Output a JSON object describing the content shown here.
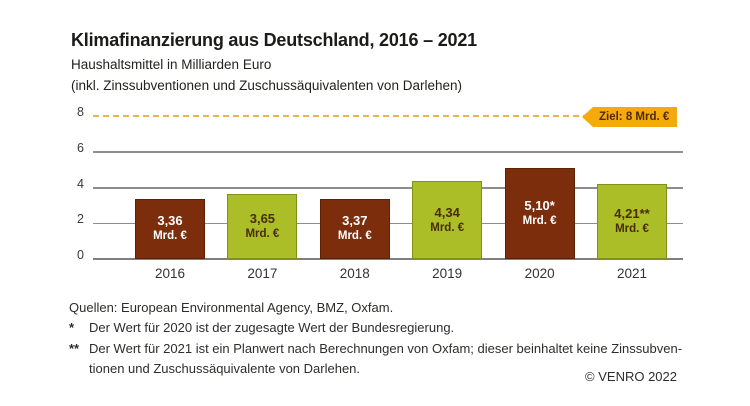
{
  "header": {
    "title": "Klimafinanzierung aus Deutschland, 2016 – 2021",
    "subtitle1": "Haushaltsmittel in Milliarden Euro",
    "subtitle2": "(inkl. Zinssubventionen und Zuschussäquivalenten von Darlehen)"
  },
  "chart_data": {
    "type": "bar",
    "title": "Klimafinanzierung aus Deutschland, 2016 – 2021",
    "ylabel": "Haushaltsmittel in Milliarden Euro",
    "xlabel": "",
    "categories": [
      "2016",
      "2017",
      "2018",
      "2019",
      "2020",
      "2021"
    ],
    "values": [
      3.36,
      3.65,
      3.37,
      4.34,
      5.1,
      4.21
    ],
    "ylim": [
      0,
      8
    ],
    "yticks": [
      0,
      2,
      4,
      6,
      8
    ],
    "grid": true,
    "bar_unit": "Mrd. €",
    "bars": [
      {
        "category": "2016",
        "value": 3.36,
        "label": "3,36",
        "unit": "Mrd. €",
        "fill": "#7b2d0c",
        "stroke": "#5e2108",
        "text_color": "#ffffff"
      },
      {
        "category": "2017",
        "value": 3.65,
        "label": "3,65",
        "unit": "Mrd. €",
        "fill": "#abbe28",
        "stroke": "#80911a",
        "text_color": "#4a2a08"
      },
      {
        "category": "2018",
        "value": 3.37,
        "label": "3,37",
        "unit": "Mrd. €",
        "fill": "#7b2d0c",
        "stroke": "#5e2108",
        "text_color": "#ffffff"
      },
      {
        "category": "2019",
        "value": 4.34,
        "label": "4,34",
        "unit": "Mrd. €",
        "fill": "#abbe28",
        "stroke": "#80911a",
        "text_color": "#4a2a08"
      },
      {
        "category": "2020",
        "value": 5.1,
        "label": "5,10*",
        "unit": "Mrd. €",
        "fill": "#7b2d0c",
        "stroke": "#5e2108",
        "text_color": "#ffffff"
      },
      {
        "category": "2021",
        "value": 4.21,
        "label": "4,21**",
        "unit": "Mrd. €",
        "fill": "#abbe28",
        "stroke": "#80911a",
        "text_color": "#4a2a08"
      }
    ],
    "target_line": {
      "value": 8,
      "label": "Ziel: 8 Mrd. €",
      "line_color": "#e8b44d",
      "tag_color": "#f5a90a",
      "tag_text_color": "#4d2c05"
    },
    "axis_colors": {
      "grid_color": "#8d8d8d",
      "tick_color": "#3a3a3a"
    }
  },
  "footer": {
    "sources": "Quellen: European Environmental Agency, BMZ, Oxfam.",
    "footnotes": [
      {
        "marker": "*",
        "lines": [
          "Der Wert für 2020 ist der zugesagte Wert der Bundesregierung."
        ]
      },
      {
        "marker": "**",
        "lines": [
          "Der Wert für 2021 ist ein Planwert nach Berechnungen von Oxfam; dieser beinhaltet keine Zinssubven-",
          "tionen und Zuschussäquivalente von Darlehen."
        ]
      }
    ],
    "copyright": "© VENRO 2022"
  }
}
